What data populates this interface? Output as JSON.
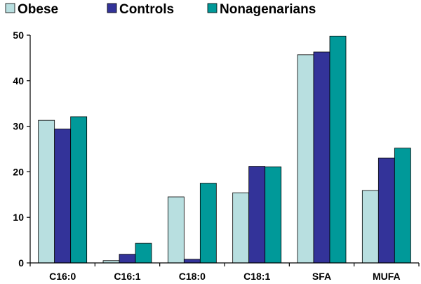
{
  "chart_data": {
    "type": "bar",
    "categories": [
      "C16:0",
      "C16:1",
      "C18:0",
      "C18:1",
      "SFA",
      "MUFA"
    ],
    "series": [
      {
        "name": "Obese",
        "color": "#b8dfe0",
        "values": [
          31.3,
          0.5,
          14.5,
          15.4,
          45.7,
          15.9
        ]
      },
      {
        "name": "Controls",
        "color": "#333399",
        "values": [
          29.4,
          1.9,
          0.8,
          21.2,
          46.3,
          23.0
        ]
      },
      {
        "name": "Nonagenarians",
        "color": "#009999",
        "values": [
          32.1,
          4.3,
          17.5,
          21.1,
          49.8,
          25.2
        ]
      }
    ],
    "yticks": [
      "0",
      "10",
      "20",
      "30",
      "40",
      "50"
    ],
    "ylim": [
      0,
      50
    ],
    "legend_position": "top-left",
    "grid": false
  }
}
